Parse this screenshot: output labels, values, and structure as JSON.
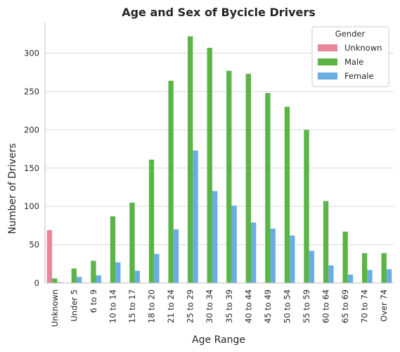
{
  "chart_data": {
    "type": "bar",
    "title": "Age and Sex of Bycicle Drivers",
    "xlabel": "Age Range",
    "ylabel": "Number of Drivers",
    "ylim": [
      0,
      340
    ],
    "yticks": [
      0,
      50,
      100,
      150,
      200,
      250,
      300
    ],
    "grid": "horizontal",
    "legend_position": "top-right",
    "legend_title": "Gender",
    "categories": [
      "Unknown",
      "Under 5",
      "6 to 9",
      "10 to 14",
      "15 to 17",
      "18 to 20",
      "21 to 24",
      "25 to 29",
      "30 to 34",
      "35 to 39",
      "40 to 44",
      "45 to 49",
      "50 to 54",
      "55 to 59",
      "60 to 64",
      "65 to 69",
      "70 to 74",
      "Over 74"
    ],
    "series": [
      {
        "name": "Unknown",
        "color": "#e8879a",
        "values": [
          69,
          0,
          0,
          0,
          0,
          0,
          0,
          0,
          0,
          0,
          0,
          0,
          0,
          0,
          0,
          0,
          0,
          0
        ]
      },
      {
        "name": "Male",
        "color": "#5ab546",
        "values": [
          6,
          19,
          29,
          87,
          105,
          161,
          264,
          322,
          307,
          277,
          273,
          248,
          230,
          200,
          107,
          67,
          39,
          39
        ]
      },
      {
        "name": "Female",
        "color": "#6aaee1",
        "values": [
          1,
          8,
          10,
          27,
          16,
          38,
          70,
          173,
          120,
          101,
          79,
          71,
          62,
          42,
          23,
          11,
          17,
          18
        ]
      }
    ]
  }
}
